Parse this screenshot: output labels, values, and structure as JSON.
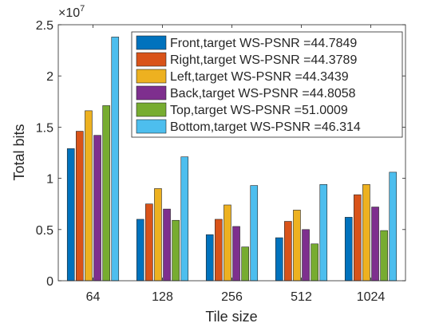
{
  "chart_data": {
    "type": "bar",
    "xlabel": "Tile size",
    "ylabel": "Total bits",
    "categories": [
      "64",
      "128",
      "256",
      "512",
      "1024"
    ],
    "ylim": [
      0,
      25000000
    ],
    "yticks": [
      0,
      5000000,
      10000000,
      15000000,
      20000000,
      25000000
    ],
    "ytick_labels": [
      "0",
      "0.5",
      "1",
      "1.5",
      "2",
      "2.5"
    ],
    "y_exponent": {
      "base": "10",
      "power": "7"
    },
    "legend_position": "top-right",
    "series": [
      {
        "name": "Front,target WS-PSNR =44.7849",
        "color": "#0072BD",
        "values": [
          12900000,
          6000000,
          4500000,
          4200000,
          6200000
        ]
      },
      {
        "name": "Right,target WS-PSNR =44.3789",
        "color": "#D95319",
        "values": [
          14600000,
          7500000,
          6000000,
          5800000,
          8400000
        ]
      },
      {
        "name": "Left,target WS-PSNR =44.3439",
        "color": "#EDB120",
        "values": [
          16600000,
          9000000,
          7400000,
          6900000,
          9400000
        ]
      },
      {
        "name": "Back,target WS-PSNR =44.8058",
        "color": "#7E2F8E",
        "values": [
          14200000,
          7000000,
          5300000,
          5000000,
          7200000
        ]
      },
      {
        "name": "Top,target WS-PSNR =51.0009",
        "color": "#77AC30",
        "values": [
          17100000,
          5900000,
          3300000,
          3600000,
          4900000
        ]
      },
      {
        "name": "Bottom,target WS-PSNR =46.314",
        "color": "#4DBEEE",
        "values": [
          23800000,
          12100000,
          9300000,
          9400000,
          10600000
        ]
      }
    ]
  }
}
